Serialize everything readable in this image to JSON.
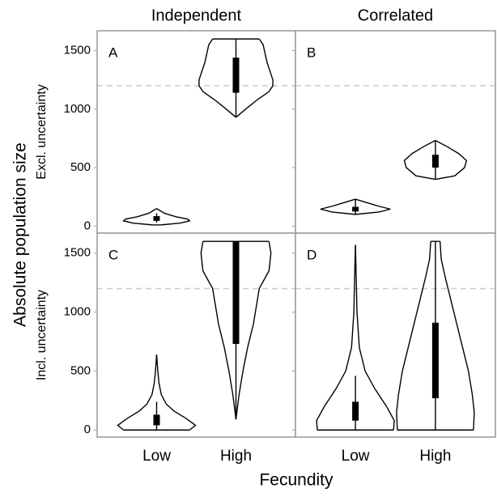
{
  "chart_data": {
    "type": "violin",
    "ylabel": "Absolute population size",
    "xlabel": "Fecundity",
    "columns": [
      "Independent",
      "Correlated"
    ],
    "rows": [
      "Excl. uncertainty",
      "Incl. uncertainty"
    ],
    "categories": [
      "Low",
      "High"
    ],
    "ylim": [
      -60,
      1670
    ],
    "yticks": [
      0,
      500,
      1000,
      1500
    ],
    "hline": 1200,
    "color": "#000000",
    "panels": [
      {
        "label": "A",
        "violins": [
          {
            "y": [
              10,
              25,
              45,
              60,
              80,
              110,
              150
            ],
            "width": [
              0.1,
              0.6,
              0.85,
              0.8,
              0.5,
              0.2,
              0
            ],
            "q1": 45,
            "q3": 85,
            "whisker_low": 30,
            "whisker_high": 110
          },
          {
            "y": [
              930,
              1000,
              1080,
              1150,
              1200,
              1250,
              1400,
              1550,
              1600
            ],
            "width": [
              0,
              0.25,
              0.55,
              0.85,
              0.95,
              0.95,
              0.8,
              0.7,
              0.6
            ],
            "q1": 1140,
            "q3": 1440,
            "whisker_low": 930,
            "whisker_high": 1600
          }
        ]
      },
      {
        "label": "B",
        "violins": [
          {
            "y": [
              100,
              120,
              145,
              170,
              200,
              230
            ],
            "width": [
              0,
              0.6,
              0.9,
              0.6,
              0.3,
              0
            ],
            "q1": 125,
            "q3": 165,
            "whisker_low": 100,
            "whisker_high": 230
          },
          {
            "y": [
              400,
              430,
              500,
              560,
              620,
              680,
              732
            ],
            "width": [
              0,
              0.5,
              0.75,
              0.8,
              0.6,
              0.3,
              0
            ],
            "q1": 500,
            "q3": 610,
            "whisker_low": 400,
            "whisker_high": 732
          }
        ]
      },
      {
        "label": "C",
        "violins": [
          {
            "y": [
              0,
              40,
              100,
              160,
              220,
              300,
              400,
              500,
              640
            ],
            "width": [
              0.85,
              1.0,
              0.75,
              0.45,
              0.25,
              0.12,
              0.06,
              0.03,
              0
            ],
            "q1": 40,
            "q3": 130,
            "whisker_low": 0,
            "whisker_high": 240
          },
          {
            "y": [
              90,
              300,
              500,
              700,
              900,
              1100,
              1200,
              1350,
              1500,
              1600
            ],
            "width": [
              0,
              0.08,
              0.18,
              0.3,
              0.45,
              0.55,
              0.6,
              0.85,
              0.9,
              0.85
            ],
            "q1": 730,
            "q3": 1600,
            "whisker_low": 90,
            "whisker_high": 1600
          }
        ]
      },
      {
        "label": "D",
        "violins": [
          {
            "y": [
              0,
              80,
              200,
              350,
              500,
              700,
              1000,
              1300,
              1570
            ],
            "width": [
              0.98,
              1.0,
              0.8,
              0.5,
              0.25,
              0.1,
              0.04,
              0.02,
              0
            ],
            "q1": 80,
            "q3": 240,
            "whisker_low": 0,
            "whisker_high": 460
          },
          {
            "y": [
              0,
              150,
              300,
              500,
              700,
              900,
              1100,
              1300,
              1450,
              1600
            ],
            "width": [
              0.98,
              1.0,
              0.95,
              0.85,
              0.7,
              0.55,
              0.4,
              0.25,
              0.15,
              0.12
            ],
            "q1": 270,
            "q3": 910,
            "whisker_low": 0,
            "whisker_high": 1600
          }
        ]
      }
    ]
  }
}
